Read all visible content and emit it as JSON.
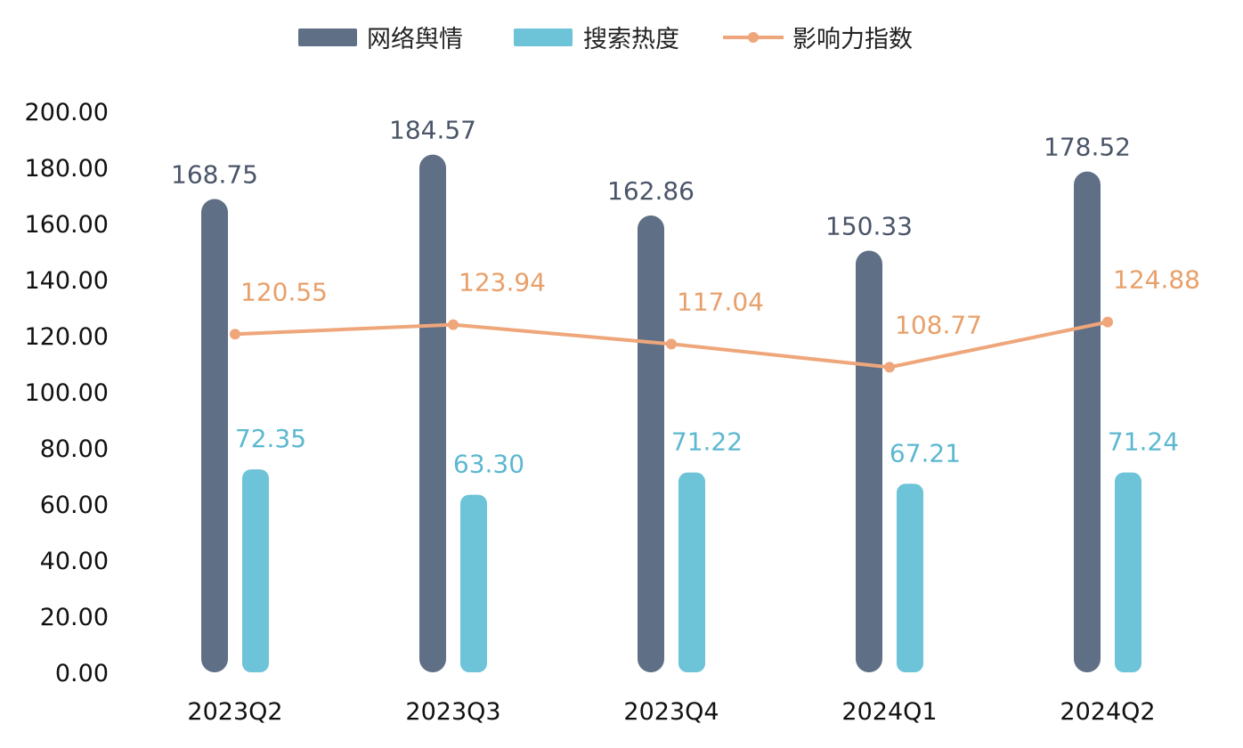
{
  "chart_data": {
    "type": "bar",
    "categories": [
      "2023Q2",
      "2023Q3",
      "2023Q4",
      "2024Q1",
      "2024Q2"
    ],
    "ylim": [
      0,
      200
    ],
    "yticks": [
      "0.00",
      "20.00",
      "40.00",
      "60.00",
      "80.00",
      "100.00",
      "120.00",
      "140.00",
      "160.00",
      "180.00",
      "200.00"
    ],
    "grid": false,
    "legend_position": "top-center",
    "series": [
      {
        "name": "网络舆情",
        "type": "bar",
        "color": "#5f6f86",
        "values": [
          168.75,
          184.57,
          162.86,
          150.33,
          178.52
        ],
        "labels": [
          "168.75",
          "184.57",
          "162.86",
          "150.33",
          "178.52"
        ]
      },
      {
        "name": "搜索热度",
        "type": "bar",
        "color": "#6dc3d7",
        "values": [
          72.35,
          63.3,
          71.22,
          67.21,
          71.24
        ],
        "labels": [
          "72.35",
          "63.30",
          "71.22",
          "67.21",
          "71.24"
        ]
      },
      {
        "name": "影响力指数",
        "type": "line",
        "color": "#eea67a",
        "values": [
          120.55,
          123.94,
          117.04,
          108.77,
          124.88
        ],
        "labels": [
          "120.55",
          "123.94",
          "117.04",
          "108.77",
          "124.88"
        ]
      }
    ]
  }
}
